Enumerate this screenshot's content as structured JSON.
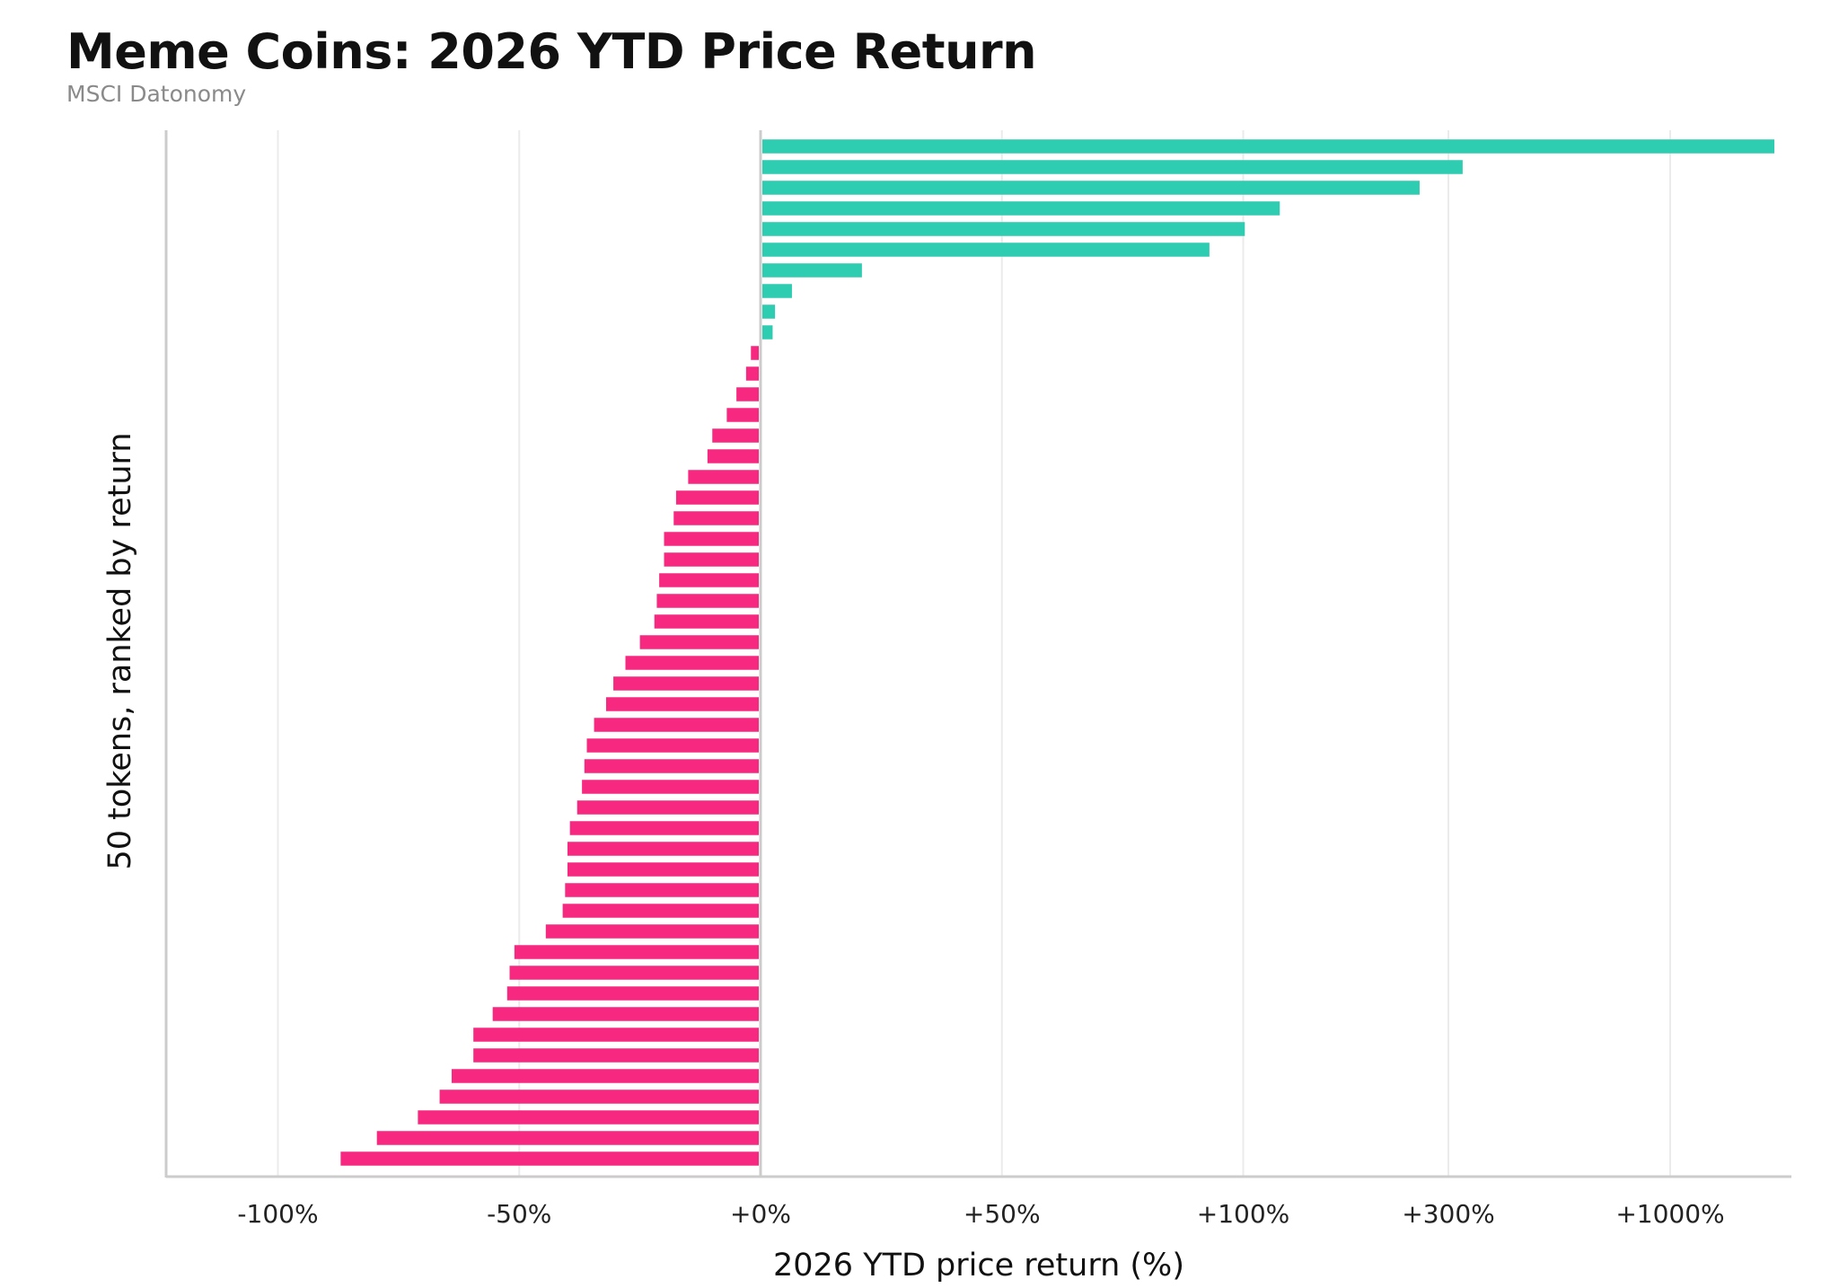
{
  "chart_data": {
    "type": "bar",
    "orientation": "horizontal",
    "title": "Meme Coins: 2026 YTD Price Return",
    "subtitle": "MSCI Datonomy",
    "xlabel": "2026 YTD price return (%)",
    "ylabel": "50 tokens, ranked by return",
    "x_scale": "piecewise: linear from -100% to +100%, compressed above +100%",
    "x_ticks": [
      "-100%",
      "-50%",
      "+0%",
      "+50%",
      "+100%",
      "+300%",
      "+1000%"
    ],
    "x_tick_values": [
      -100,
      -50,
      0,
      50,
      100,
      300,
      1000
    ],
    "xlim": [
      -125,
      1700
    ],
    "grid": "vertical",
    "colors": {
      "positive": "#2ECCB0",
      "negative": "#F7287F",
      "grid": "#ebebeb",
      "axis": "#cccccc"
    },
    "values": [
      1580,
      345,
      272,
      136,
      102,
      93,
      21,
      6.5,
      3,
      2.5,
      -2,
      -3,
      -5,
      -7,
      -10,
      -11,
      -15,
      -17.5,
      -18,
      -20,
      -20,
      -21,
      -21.5,
      -22,
      -25,
      -28,
      -30.5,
      -32,
      -34.5,
      -36,
      -36.5,
      -37,
      -38,
      -39.5,
      -40,
      -40,
      -40.5,
      -41,
      -44.5,
      -51,
      -52,
      -52.5,
      -55.5,
      -59.5,
      -59.5,
      -64,
      -66.5,
      -71,
      -79.5,
      -87
    ]
  }
}
